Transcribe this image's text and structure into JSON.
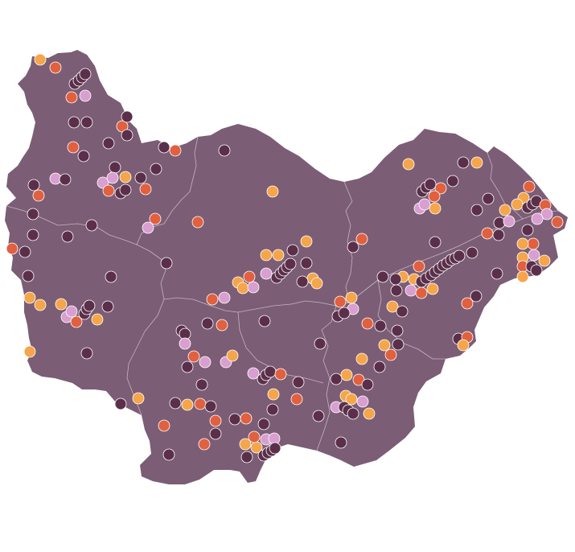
{
  "map": {
    "region_color": "#7b5d75",
    "border_color": "#ffffff"
  },
  "categories": [
    {
      "key": "dark",
      "color": "#5b2f4a"
    },
    {
      "key": "red",
      "color": "#e0603f"
    },
    {
      "key": "orange",
      "color": "#f5a54a"
    },
    {
      "key": "pink",
      "color": "#d99fd0"
    }
  ]
}
